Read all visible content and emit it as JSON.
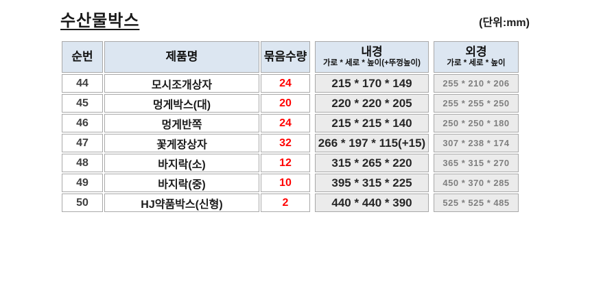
{
  "page": {
    "title": "수산물박스",
    "unit_label": "(단위:mm)"
  },
  "colors": {
    "header_bg": "#dce6f1",
    "qty_text": "#ff0000",
    "dim_cell_bg": "#ebebeb",
    "outer_text": "#7f7f7f",
    "border": "#a8a8a8"
  },
  "table": {
    "headers": {
      "no": "순번",
      "product": "제품명",
      "qty": "묶음수량",
      "inner_title": "내경",
      "inner_subtitle": "가로 * 세로 * 높이(+뚜껑높이)",
      "outer_title": "외경",
      "outer_subtitle": "가로 * 세로 * 높이"
    },
    "rows": [
      {
        "no": "44",
        "product": "모시조개상자",
        "qty": "24",
        "inner": "215 * 170 * 149",
        "outer": "255 * 210 * 206"
      },
      {
        "no": "45",
        "product": "멍게박스(대)",
        "qty": "20",
        "inner": "220 * 220 * 205",
        "outer": "255 * 255 * 250"
      },
      {
        "no": "46",
        "product": "멍게반쪽",
        "qty": "24",
        "inner": "215 * 215 * 140",
        "outer": "250 * 250 * 180"
      },
      {
        "no": "47",
        "product": "꽃게장상자",
        "qty": "32",
        "inner": "266 * 197 * 115(+15)",
        "outer": "307 * 238 * 174"
      },
      {
        "no": "48",
        "product": "바지락(소)",
        "qty": "12",
        "inner": "315 * 265 * 220",
        "outer": "365 * 315 * 270"
      },
      {
        "no": "49",
        "product": "바지락(중)",
        "qty": "10",
        "inner": "395 * 315 * 225",
        "outer": "450 * 370 * 285"
      },
      {
        "no": "50",
        "product": "HJ약품박스(신형)",
        "qty": "2",
        "inner": "440 * 440 * 390",
        "outer": "525 * 525 * 485"
      }
    ]
  }
}
